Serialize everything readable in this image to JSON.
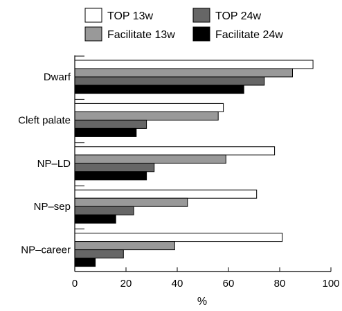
{
  "chart_data": {
    "type": "bar",
    "orientation": "horizontal",
    "categories": [
      "Dwarf",
      "Cleft palate",
      "NP–LD",
      "NP–sep",
      "NP–career"
    ],
    "series": [
      {
        "name": "TOP 13w",
        "color": "#ffffff",
        "values": [
          93,
          58,
          78,
          71,
          81
        ]
      },
      {
        "name": "Facilitate 13w",
        "color": "#999999",
        "values": [
          85,
          56,
          59,
          44,
          39
        ]
      },
      {
        "name": "TOP 24w",
        "color": "#666666",
        "values": [
          74,
          28,
          31,
          23,
          19
        ]
      },
      {
        "name": "Facilitate 24w",
        "color": "#000000",
        "values": [
          66,
          24,
          28,
          16,
          8
        ]
      }
    ],
    "xlabel": "%",
    "xlim": [
      0,
      100
    ],
    "xticks": [
      "0",
      "20",
      "40",
      "60",
      "80",
      "100"
    ],
    "grid": false,
    "legend_position": "top"
  }
}
